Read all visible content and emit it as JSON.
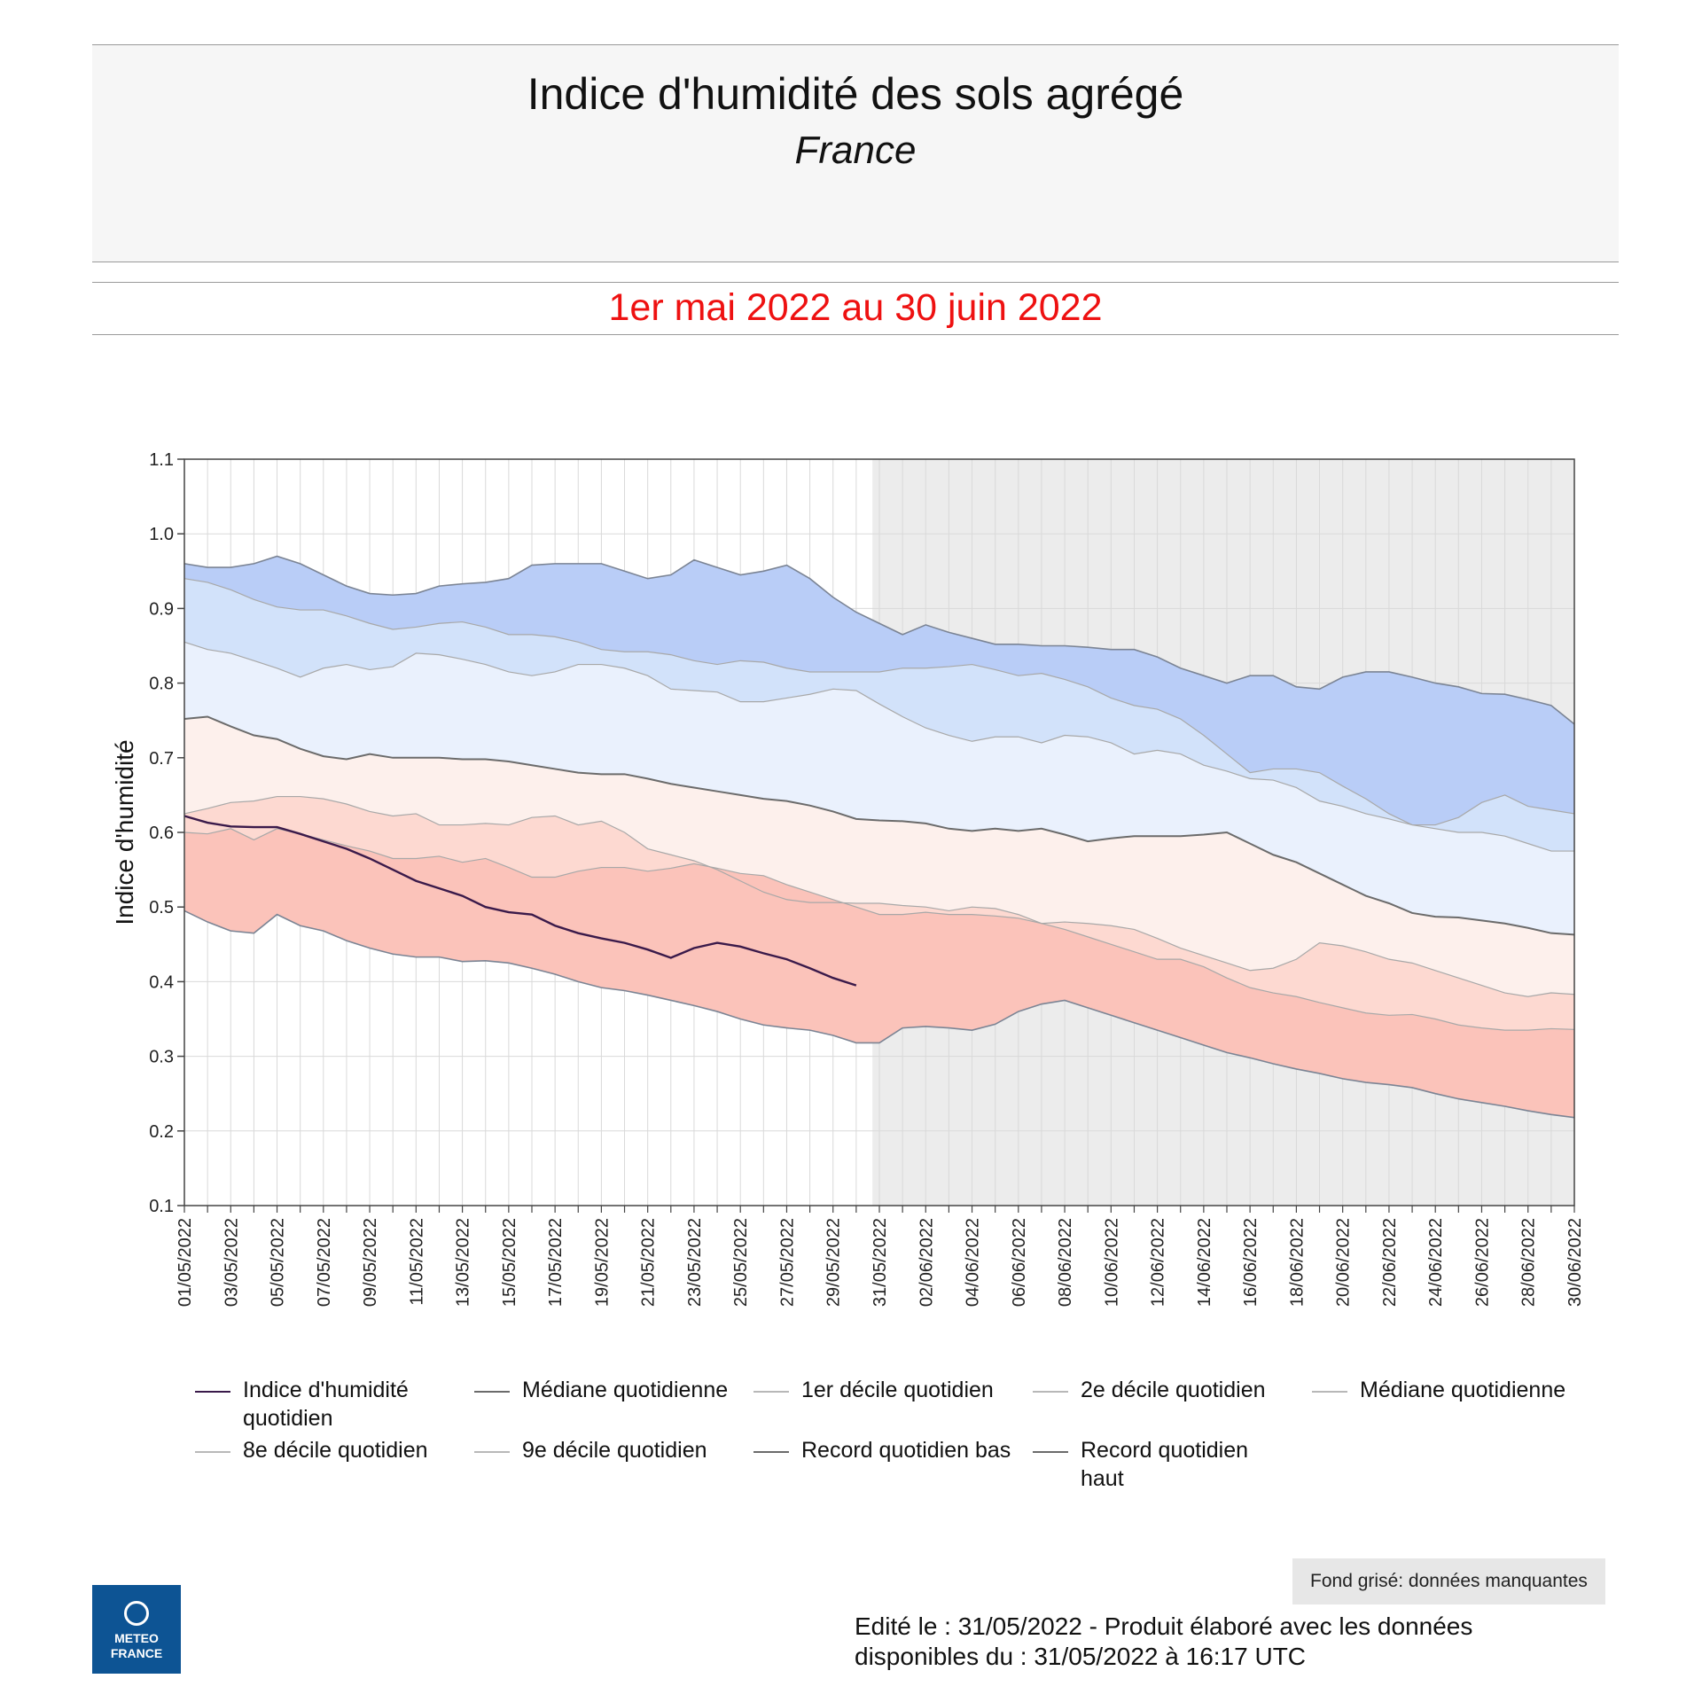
{
  "header": {
    "title": "Indice d'humidité des sols agrégé",
    "subtitle": "France",
    "period": "1er mai 2022 au 30 juin 2022"
  },
  "chart_data": {
    "type": "area",
    "title": "Indice d'humidité des sols agrégé",
    "ylabel": "Indice d'humidité",
    "xlabel": "",
    "ylim": [
      0.1,
      1.1
    ],
    "yticks": [
      "0.1",
      "0.2",
      "0.3",
      "0.4",
      "0.5",
      "0.6",
      "0.7",
      "0.8",
      "0.9",
      "1.0",
      "1.1"
    ],
    "x_tick_labels": [
      "01/05/2022",
      "03/05/2022",
      "05/05/2022",
      "07/05/2022",
      "09/05/2022",
      "11/05/2022",
      "13/05/2022",
      "15/05/2022",
      "17/05/2022",
      "19/05/2022",
      "21/05/2022",
      "23/05/2022",
      "25/05/2022",
      "27/05/2022",
      "29/05/2022",
      "31/05/2022",
      "02/06/2022",
      "04/06/2022",
      "06/06/2022",
      "08/06/2022",
      "10/06/2022",
      "12/06/2022",
      "14/06/2022",
      "16/06/2022",
      "18/06/2022",
      "20/06/2022",
      "22/06/2022",
      "24/06/2022",
      "26/06/2022",
      "28/06/2022",
      "30/06/2022"
    ],
    "missing_data_from": "31/05/2022",
    "series": [
      {
        "name": "Record quotidien haut",
        "day_offsets": [
          0,
          1,
          2,
          3,
          4,
          5,
          6,
          7,
          8,
          9,
          10,
          11,
          12,
          13,
          14,
          15,
          16,
          17,
          18,
          19,
          20,
          21,
          22,
          23,
          24,
          25,
          26,
          27,
          28,
          29,
          30,
          31,
          32,
          33,
          34,
          35,
          36,
          37,
          38,
          39,
          40,
          41,
          42,
          43,
          44,
          45,
          46,
          47,
          48,
          49,
          50,
          51,
          52,
          53,
          54,
          55,
          56,
          57,
          58,
          59,
          60
        ],
        "values": [
          0.96,
          0.955,
          0.955,
          0.96,
          0.97,
          0.96,
          0.945,
          0.93,
          0.92,
          0.918,
          0.92,
          0.93,
          0.933,
          0.935,
          0.94,
          0.958,
          0.96,
          0.96,
          0.96,
          0.95,
          0.94,
          0.945,
          0.965,
          0.955,
          0.945,
          0.95,
          0.958,
          0.94,
          0.915,
          0.895,
          0.88,
          0.865,
          0.878,
          0.868,
          0.86,
          0.852,
          0.852,
          0.85,
          0.85,
          0.848,
          0.845,
          0.845,
          0.835,
          0.82,
          0.81,
          0.8,
          0.81,
          0.81,
          0.795,
          0.792,
          0.808,
          0.815,
          0.815,
          0.808,
          0.8,
          0.795,
          0.786,
          0.785,
          0.778,
          0.77,
          0.745
        ]
      },
      {
        "name": "9e décile quotidien",
        "day_offsets": [
          0,
          1,
          2,
          3,
          4,
          5,
          6,
          7,
          8,
          9,
          10,
          11,
          12,
          13,
          14,
          15,
          16,
          17,
          18,
          19,
          20,
          21,
          22,
          23,
          24,
          25,
          26,
          27,
          28,
          29,
          30,
          31,
          32,
          33,
          34,
          35,
          36,
          37,
          38,
          39,
          40,
          41,
          42,
          43,
          44,
          45,
          46,
          47,
          48,
          49,
          50,
          51,
          52,
          53,
          54,
          55,
          56,
          57,
          58,
          59,
          60
        ],
        "values": [
          0.94,
          0.935,
          0.925,
          0.912,
          0.902,
          0.898,
          0.898,
          0.89,
          0.88,
          0.872,
          0.875,
          0.88,
          0.882,
          0.875,
          0.865,
          0.865,
          0.862,
          0.855,
          0.845,
          0.842,
          0.842,
          0.838,
          0.83,
          0.825,
          0.83,
          0.828,
          0.82,
          0.815,
          0.815,
          0.815,
          0.815,
          0.82,
          0.82,
          0.822,
          0.825,
          0.818,
          0.81,
          0.813,
          0.805,
          0.795,
          0.78,
          0.77,
          0.765,
          0.752,
          0.73,
          0.705,
          0.68,
          0.685,
          0.685,
          0.68,
          0.662,
          0.645,
          0.625,
          0.61,
          0.61,
          0.62,
          0.64,
          0.65,
          0.635,
          0.63,
          0.625
        ]
      },
      {
        "name": "8e décile quotidien",
        "day_offsets": [
          0,
          1,
          2,
          3,
          4,
          5,
          6,
          7,
          8,
          9,
          10,
          11,
          12,
          13,
          14,
          15,
          16,
          17,
          18,
          19,
          20,
          21,
          22,
          23,
          24,
          25,
          26,
          27,
          28,
          29,
          30,
          31,
          32,
          33,
          34,
          35,
          36,
          37,
          38,
          39,
          40,
          41,
          42,
          43,
          44,
          45,
          46,
          47,
          48,
          49,
          50,
          51,
          52,
          53,
          54,
          55,
          56,
          57,
          58,
          59,
          60
        ],
        "values": [
          0.855,
          0.845,
          0.84,
          0.83,
          0.82,
          0.808,
          0.82,
          0.825,
          0.818,
          0.822,
          0.84,
          0.838,
          0.832,
          0.825,
          0.815,
          0.81,
          0.815,
          0.825,
          0.825,
          0.82,
          0.81,
          0.792,
          0.79,
          0.788,
          0.775,
          0.775,
          0.78,
          0.785,
          0.792,
          0.79,
          0.772,
          0.755,
          0.74,
          0.73,
          0.722,
          0.728,
          0.728,
          0.72,
          0.73,
          0.728,
          0.72,
          0.705,
          0.71,
          0.705,
          0.69,
          0.682,
          0.672,
          0.67,
          0.66,
          0.642,
          0.635,
          0.625,
          0.618,
          0.61,
          0.605,
          0.6,
          0.6,
          0.595,
          0.585,
          0.575,
          0.575
        ]
      },
      {
        "name": "Médiane quotidienne",
        "day_offsets": [
          0,
          1,
          2,
          3,
          4,
          5,
          6,
          7,
          8,
          9,
          10,
          11,
          12,
          13,
          14,
          15,
          16,
          17,
          18,
          19,
          20,
          21,
          22,
          23,
          24,
          25,
          26,
          27,
          28,
          29,
          30,
          31,
          32,
          33,
          34,
          35,
          36,
          37,
          38,
          39,
          40,
          41,
          42,
          43,
          44,
          45,
          46,
          47,
          48,
          49,
          50,
          51,
          52,
          53,
          54,
          55,
          56,
          57,
          58,
          59,
          60
        ],
        "values": [
          0.752,
          0.755,
          0.742,
          0.73,
          0.725,
          0.712,
          0.702,
          0.698,
          0.705,
          0.7,
          0.7,
          0.7,
          0.698,
          0.698,
          0.695,
          0.69,
          0.685,
          0.68,
          0.678,
          0.678,
          0.672,
          0.665,
          0.66,
          0.655,
          0.65,
          0.645,
          0.642,
          0.636,
          0.628,
          0.618,
          0.616,
          0.615,
          0.612,
          0.605,
          0.602,
          0.605,
          0.602,
          0.605,
          0.597,
          0.588,
          0.592,
          0.595,
          0.595,
          0.595,
          0.597,
          0.6,
          0.585,
          0.57,
          0.56,
          0.545,
          0.53,
          0.515,
          0.505,
          0.492,
          0.487,
          0.486,
          0.482,
          0.478,
          0.472,
          0.465,
          0.463
        ]
      },
      {
        "name": "2e décile quotidien",
        "day_offsets": [
          0,
          1,
          2,
          3,
          4,
          5,
          6,
          7,
          8,
          9,
          10,
          11,
          12,
          13,
          14,
          15,
          16,
          17,
          18,
          19,
          20,
          21,
          22,
          23,
          24,
          25,
          26,
          27,
          28,
          29,
          30,
          31,
          32,
          33,
          34,
          35,
          36,
          37,
          38,
          39,
          40,
          41,
          42,
          43,
          44,
          45,
          46,
          47,
          48,
          49,
          50,
          51,
          52,
          53,
          54,
          55,
          56,
          57,
          58,
          59,
          60
        ],
        "values": [
          0.625,
          0.632,
          0.64,
          0.642,
          0.648,
          0.648,
          0.645,
          0.638,
          0.628,
          0.622,
          0.625,
          0.61,
          0.61,
          0.612,
          0.61,
          0.62,
          0.622,
          0.61,
          0.615,
          0.6,
          0.578,
          0.57,
          0.562,
          0.55,
          0.535,
          0.52,
          0.51,
          0.506,
          0.506,
          0.505,
          0.505,
          0.502,
          0.5,
          0.495,
          0.5,
          0.498,
          0.49,
          0.478,
          0.48,
          0.478,
          0.475,
          0.47,
          0.458,
          0.445,
          0.435,
          0.425,
          0.415,
          0.418,
          0.43,
          0.452,
          0.448,
          0.44,
          0.43,
          0.425,
          0.415,
          0.405,
          0.395,
          0.385,
          0.38,
          0.385,
          0.383
        ]
      },
      {
        "name": "1er décile quotidien",
        "day_offsets": [
          0,
          1,
          2,
          3,
          4,
          5,
          6,
          7,
          8,
          9,
          10,
          11,
          12,
          13,
          14,
          15,
          16,
          17,
          18,
          19,
          20,
          21,
          22,
          23,
          24,
          25,
          26,
          27,
          28,
          29,
          30,
          31,
          32,
          33,
          34,
          35,
          36,
          37,
          38,
          39,
          40,
          41,
          42,
          43,
          44,
          45,
          46,
          47,
          48,
          49,
          50,
          51,
          52,
          53,
          54,
          55,
          56,
          57,
          58,
          59,
          60
        ],
        "values": [
          0.6,
          0.598,
          0.605,
          0.59,
          0.605,
          0.598,
          0.59,
          0.582,
          0.575,
          0.565,
          0.565,
          0.568,
          0.56,
          0.565,
          0.553,
          0.54,
          0.54,
          0.548,
          0.553,
          0.553,
          0.548,
          0.552,
          0.558,
          0.552,
          0.545,
          0.542,
          0.53,
          0.52,
          0.51,
          0.5,
          0.49,
          0.49,
          0.493,
          0.49,
          0.49,
          0.488,
          0.485,
          0.478,
          0.47,
          0.46,
          0.45,
          0.44,
          0.43,
          0.43,
          0.42,
          0.405,
          0.392,
          0.385,
          0.38,
          0.372,
          0.365,
          0.358,
          0.355,
          0.356,
          0.35,
          0.342,
          0.338,
          0.335,
          0.335,
          0.337,
          0.336
        ]
      },
      {
        "name": "Record quotidien bas",
        "day_offsets": [
          0,
          1,
          2,
          3,
          4,
          5,
          6,
          7,
          8,
          9,
          10,
          11,
          12,
          13,
          14,
          15,
          16,
          17,
          18,
          19,
          20,
          21,
          22,
          23,
          24,
          25,
          26,
          27,
          28,
          29,
          30,
          31,
          32,
          33,
          34,
          35,
          36,
          37,
          38,
          39,
          40,
          41,
          42,
          43,
          44,
          45,
          46,
          47,
          48,
          49,
          50,
          51,
          52,
          53,
          54,
          55,
          56,
          57,
          58,
          59,
          60
        ],
        "values": [
          0.495,
          0.48,
          0.468,
          0.465,
          0.49,
          0.475,
          0.468,
          0.455,
          0.445,
          0.437,
          0.433,
          0.433,
          0.427,
          0.428,
          0.425,
          0.418,
          0.41,
          0.4,
          0.392,
          0.388,
          0.382,
          0.375,
          0.368,
          0.36,
          0.35,
          0.342,
          0.338,
          0.335,
          0.328,
          0.318,
          0.318,
          0.338,
          0.34,
          0.338,
          0.335,
          0.343,
          0.36,
          0.37,
          0.375,
          0.365,
          0.355,
          0.345,
          0.335,
          0.325,
          0.315,
          0.305,
          0.298,
          0.29,
          0.283,
          0.277,
          0.27,
          0.265,
          0.262,
          0.258,
          0.25,
          0.243,
          0.238,
          0.233,
          0.227,
          0.222,
          0.218
        ]
      },
      {
        "name": "Indice d'humidité quotidien",
        "day_offsets": [
          0,
          1,
          2,
          3,
          4,
          5,
          6,
          7,
          8,
          9,
          10,
          11,
          12,
          13,
          14,
          15,
          16,
          17,
          18,
          19,
          20,
          21,
          22,
          23,
          24,
          25,
          26,
          27,
          28,
          29
        ],
        "values": [
          0.622,
          0.613,
          0.608,
          0.607,
          0.607,
          0.598,
          0.588,
          0.578,
          0.565,
          0.55,
          0.535,
          0.525,
          0.515,
          0.5,
          0.493,
          0.49,
          0.475,
          0.465,
          0.458,
          0.452,
          0.443,
          0.432,
          0.445,
          0.452,
          0.447,
          0.438,
          0.43,
          0.418,
          0.405,
          0.395
        ]
      }
    ]
  },
  "legend": [
    {
      "label": "Indice d'humidité quotidien",
      "color": "#3a1a4a"
    },
    {
      "label": "Médiane quotidienne",
      "color": "#6b6b6b"
    },
    {
      "label": "1er décile quotidien",
      "color": "#b8b8b8"
    },
    {
      "label": "2e décile quotidien",
      "color": "#b8b8b8"
    },
    {
      "label": "Médiane quotidienne",
      "color": "#b8b8b8"
    },
    {
      "label": "8e décile quotidien",
      "color": "#b8b8b8"
    },
    {
      "label": "9e décile quotidien",
      "color": "#b8b8b8"
    },
    {
      "label": "Record quotidien bas",
      "color": "#6b6b6b"
    },
    {
      "label": "Record quotidien haut",
      "color": "#6b6b6b"
    }
  ],
  "colors": {
    "band_top": "#b9cdf7",
    "band_upper": "#d2e2fa",
    "band_mid_upper": "#eaf1fd",
    "band_mid_lower": "#fdf0ec",
    "band_lower": "#fdd9d1",
    "band_bottom": "#fbc3ba",
    "current_line": "#3a1a4a",
    "median_line": "#6b6b6b",
    "missing_bg": "#ececec"
  },
  "footer": {
    "missing_note": "Fond grisé: données manquantes",
    "edited_line1": "Edité le : 31/05/2022 - Produit élaboré avec les données",
    "edited_line2": "disponibles du : 31/05/2022 à 16:17 UTC",
    "logo_line1": "METEO",
    "logo_line2": "FRANCE"
  }
}
